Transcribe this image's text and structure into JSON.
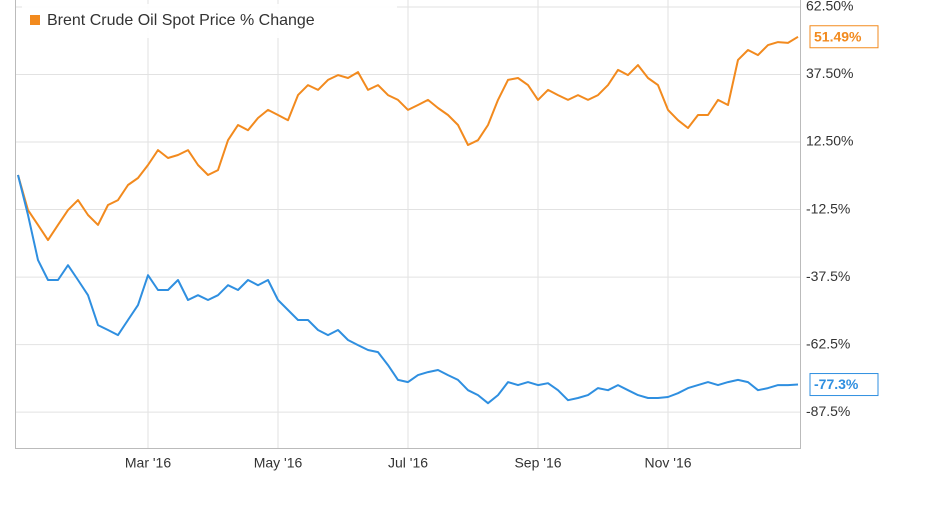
{
  "chart_data": {
    "type": "line",
    "categories": [
      null,
      null,
      null,
      null,
      null,
      null,
      null,
      null,
      null,
      null,
      null,
      null,
      null,
      "Mar '16",
      null,
      null,
      null,
      null,
      null,
      null,
      null,
      null,
      null,
      null,
      null,
      null,
      "May '16",
      null,
      null,
      null,
      null,
      null,
      null,
      null,
      null,
      null,
      null,
      null,
      null,
      "Jul '16",
      null,
      null,
      null,
      null,
      null,
      null,
      null,
      null,
      null,
      null,
      null,
      null,
      "Sep '16",
      null,
      null,
      null,
      null,
      null,
      null,
      null,
      null,
      null,
      null,
      null,
      null,
      "Nov '16",
      null,
      null,
      null,
      null,
      null,
      null,
      null,
      null,
      null,
      null,
      null,
      null,
      null
    ],
    "series": [
      {
        "name": "Brent Crude Oil Spot Price % Change",
        "color": "#f28a1e",
        "last_label": "51.49%",
        "values": [
          0.3,
          -12.7,
          -18.2,
          -23.8,
          -18.2,
          -12.7,
          -9.0,
          -14.5,
          -18.2,
          -10.8,
          -9.0,
          -3.4,
          -0.8,
          4.0,
          9.5,
          6.6,
          7.7,
          9.5,
          4.0,
          0.3,
          2.1,
          13.2,
          18.8,
          16.9,
          21.4,
          24.4,
          22.5,
          20.6,
          29.9,
          33.6,
          31.8,
          35.5,
          37.3,
          36.2,
          38.4,
          31.8,
          33.6,
          29.9,
          28.1,
          24.4,
          26.2,
          28.1,
          25.1,
          22.5,
          18.8,
          11.4,
          13.2,
          18.8,
          28.1,
          35.5,
          36.2,
          33.6,
          28.1,
          31.8,
          29.9,
          28.1,
          29.9,
          28.1,
          29.9,
          33.6,
          39.2,
          37.3,
          41.0,
          36.2,
          33.6,
          24.4,
          20.6,
          17.7,
          22.5,
          22.5,
          28.1,
          26.2,
          42.9,
          46.6,
          44.7,
          48.4,
          49.5,
          49.2,
          51.49
        ]
      },
      {
        "color": "#2f8fe0",
        "last_label": "-77.3%",
        "values": [
          0.3,
          -14.5,
          -31.2,
          -38.6,
          -38.6,
          -33.1,
          -38.6,
          -44.2,
          -55.3,
          -57.1,
          -59.0,
          -53.4,
          -47.9,
          -36.8,
          -42.3,
          -42.3,
          -38.6,
          -46.0,
          -44.2,
          -46.0,
          -44.2,
          -40.5,
          -42.3,
          -38.6,
          -40.5,
          -38.6,
          -46.0,
          -49.7,
          -53.4,
          -53.4,
          -57.1,
          -59.0,
          -57.1,
          -60.8,
          -62.7,
          -64.5,
          -65.3,
          -70.1,
          -75.6,
          -76.4,
          -73.8,
          -72.7,
          -71.9,
          -73.8,
          -75.6,
          -79.4,
          -81.2,
          -84.2,
          -81.2,
          -76.4,
          -77.5,
          -76.4,
          -77.5,
          -76.8,
          -79.4,
          -83.1,
          -82.3,
          -81.2,
          -78.6,
          -79.4,
          -77.5,
          -79.4,
          -81.2,
          -82.3,
          -82.3,
          -81.9,
          -80.5,
          -78.6,
          -77.5,
          -76.4,
          -77.5,
          -76.4,
          -75.6,
          -76.4,
          -79.4,
          -78.6,
          -77.5,
          -77.5,
          -77.3
        ]
      }
    ],
    "ylim": [
      -100.8,
      65.1
    ],
    "yticks": [
      {
        "value": -87.5,
        "label": "-87.5%"
      },
      {
        "value": -62.5,
        "label": "-62.5%"
      },
      {
        "value": -37.5,
        "label": "-37.5%"
      },
      {
        "value": -12.5,
        "label": "-12.5%"
      },
      {
        "value": 12.5,
        "label": "12.50%"
      },
      {
        "value": 37.5,
        "label": "37.50%"
      },
      {
        "value": 62.5,
        "label": "62.50%"
      }
    ],
    "grid": true
  }
}
